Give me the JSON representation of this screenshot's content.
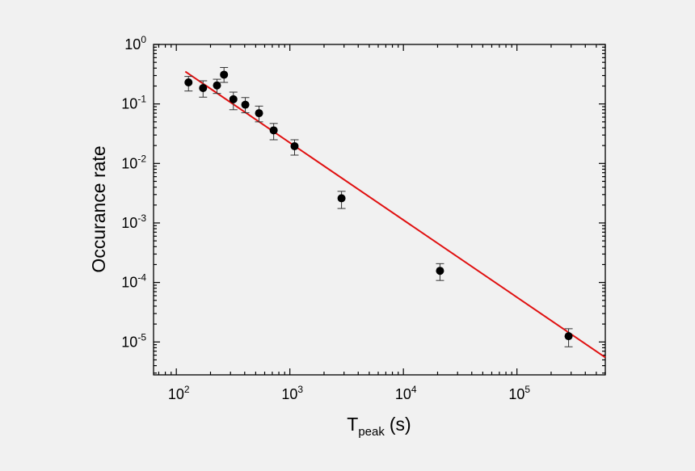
{
  "chart_data": {
    "type": "scatter",
    "xlabel": {
      "main": "T",
      "sub": "peak",
      "unit": "(s)"
    },
    "ylabel": "Occurance rate",
    "x_scale": "log",
    "y_scale": "log",
    "xlim": [
      63,
      600000
    ],
    "ylim": [
      2.8e-06,
      1.0
    ],
    "x_ticks": [
      {
        "base": "10",
        "exp": "2",
        "value": 100
      },
      {
        "base": "10",
        "exp": "3",
        "value": 1000
      },
      {
        "base": "10",
        "exp": "4",
        "value": 10000
      },
      {
        "base": "10",
        "exp": "5",
        "value": 100000
      }
    ],
    "y_ticks": [
      {
        "base": "10",
        "exp": "0",
        "value": 1
      },
      {
        "base": "10",
        "exp": "-1",
        "value": 0.1
      },
      {
        "base": "10",
        "exp": "-2",
        "value": 0.01
      },
      {
        "base": "10",
        "exp": "-3",
        "value": 0.001
      },
      {
        "base": "10",
        "exp": "-4",
        "value": 0.0001
      },
      {
        "base": "10",
        "exp": "-5",
        "value": 1e-05
      }
    ],
    "points": [
      {
        "x": 128,
        "y": 0.23,
        "err_low": 0.165,
        "err_high": 0.29
      },
      {
        "x": 172,
        "y": 0.185,
        "err_low": 0.13,
        "err_high": 0.245
      },
      {
        "x": 228,
        "y": 0.205,
        "err_low": 0.15,
        "err_high": 0.26
      },
      {
        "x": 263,
        "y": 0.31,
        "err_low": 0.23,
        "err_high": 0.41
      },
      {
        "x": 318,
        "y": 0.12,
        "err_low": 0.08,
        "err_high": 0.158
      },
      {
        "x": 405,
        "y": 0.097,
        "err_low": 0.071,
        "err_high": 0.128
      },
      {
        "x": 535,
        "y": 0.07,
        "err_low": 0.05,
        "err_high": 0.092
      },
      {
        "x": 720,
        "y": 0.036,
        "err_low": 0.025,
        "err_high": 0.047
      },
      {
        "x": 1100,
        "y": 0.0195,
        "err_low": 0.0138,
        "err_high": 0.025
      },
      {
        "x": 2850,
        "y": 0.0026,
        "err_low": 0.00175,
        "err_high": 0.0034
      },
      {
        "x": 21000,
        "y": 0.000157,
        "err_low": 0.000108,
        "err_high": 0.000207
      },
      {
        "x": 285000,
        "y": 1.25e-05,
        "err_low": 8.3e-06,
        "err_high": 1.67e-05
      }
    ],
    "fit_line": {
      "x": [
        120,
        600000
      ],
      "y": [
        0.35,
        5.5e-06
      ]
    },
    "colors": {
      "points": "#000000",
      "fit_line": "#e01010",
      "axes": "#000000",
      "background": "#f1f1f1"
    },
    "grid": false,
    "legend": "none"
  }
}
